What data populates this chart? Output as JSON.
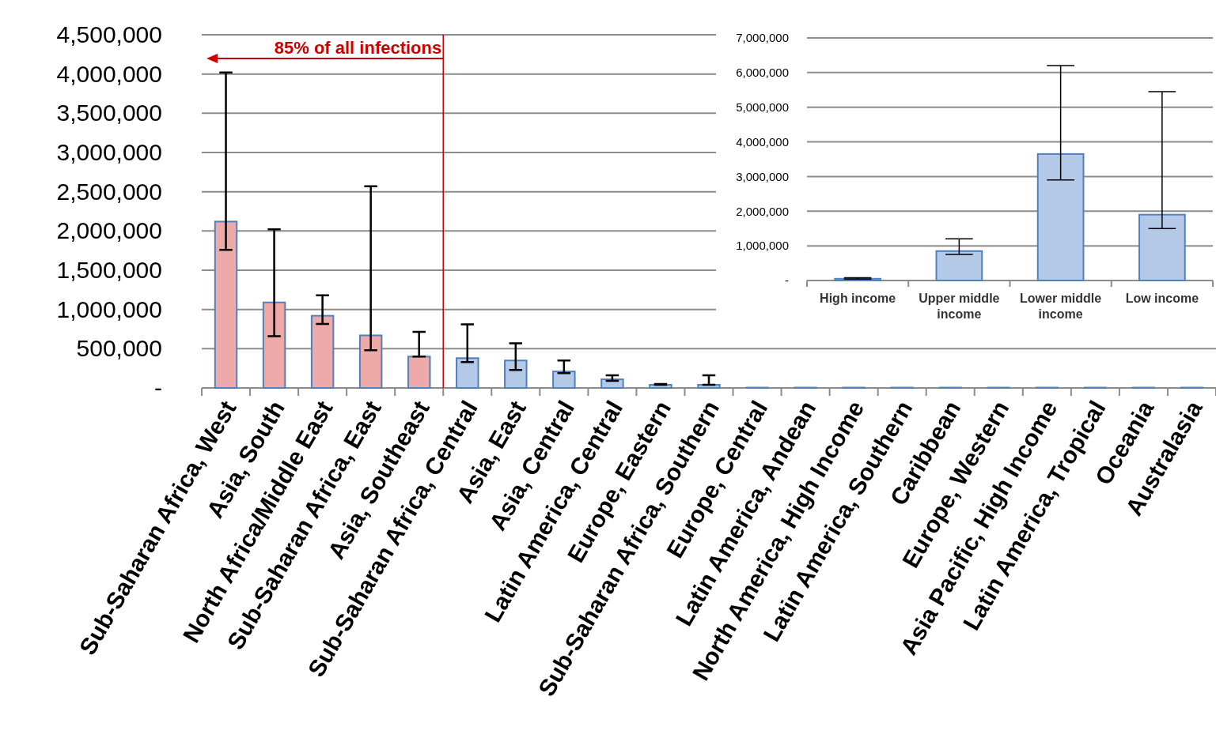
{
  "chart_data": [
    {
      "type": "bar",
      "categories": [
        "Sub-Saharan Africa, West",
        "Asia, South",
        "North Africa/Middle East",
        "Sub-Saharan Africa, East",
        "Asia, Southeast",
        "Sub-Saharan Africa, Central",
        "Asia, East",
        "Asia, Central",
        "Latin America, Central",
        "Europe, Eastern",
        "Sub-Saharan Africa, Southern",
        "Europe, Central",
        "Latin America, Andean",
        "North America, High Income",
        "Latin America, Southern",
        "Caribbean",
        "Europe, Western",
        "Asia Pacific, High Income",
        "Latin America, Tropical",
        "Oceania",
        "Australasia"
      ],
      "values": [
        2120000,
        1090000,
        920000,
        670000,
        400000,
        380000,
        350000,
        210000,
        110000,
        40000,
        40000,
        5000,
        5000,
        5000,
        5000,
        5000,
        5000,
        5000,
        5000,
        5000,
        5000
      ],
      "errors": [
        [
          1760000,
          4020000
        ],
        [
          660000,
          2020000
        ],
        [
          815000,
          1180000
        ],
        [
          480000,
          2570000
        ],
        [
          400000,
          715000
        ],
        [
          330000,
          810000
        ],
        [
          230000,
          570000
        ],
        [
          190000,
          350000
        ],
        [
          90000,
          160000
        ],
        [
          40000,
          50000
        ],
        [
          40000,
          160000
        ],
        null,
        null,
        null,
        null,
        null,
        null,
        null,
        null,
        null,
        null
      ],
      "colors": [
        "#eea9a9",
        "#eea9a9",
        "#eea9a9",
        "#eea9a9",
        "#eea9a9",
        "#b4c9e8",
        "#b4c9e8",
        "#b4c9e8",
        "#b4c9e8",
        "#b4c9e8",
        "#b4c9e8",
        "#b4c9e8",
        "#b4c9e8",
        "#b4c9e8",
        "#b4c9e8",
        "#b4c9e8",
        "#b4c9e8",
        "#b4c9e8",
        "#b4c9e8",
        "#b4c9e8",
        "#b4c9e8"
      ],
      "ylim": [
        0,
        4500000
      ],
      "yticks": [
        {
          "value": 0,
          "label": "-"
        },
        {
          "value": 500000,
          "label": "500,000"
        },
        {
          "value": 1000000,
          "label": "1,000,000"
        },
        {
          "value": 1500000,
          "label": "1,500,000"
        },
        {
          "value": 2000000,
          "label": "2,000,000"
        },
        {
          "value": 2500000,
          "label": "2,500,000"
        },
        {
          "value": 3000000,
          "label": "3,000,000"
        },
        {
          "value": 3500000,
          "label": "3,500,000"
        },
        {
          "value": 4000000,
          "label": "4,000,000"
        },
        {
          "value": 4500000,
          "label": "4,500,000"
        }
      ],
      "grid": "y",
      "ref_lines": [
        {
          "axis": "x",
          "value": "Asia, Southeast",
          "label": "85% of all infections",
          "color": "#cc0000"
        }
      ]
    },
    {
      "type": "bar",
      "categories": [
        "High income",
        "Upper middle income",
        "Lower middle income",
        "Low income"
      ],
      "values": [
        50000,
        850000,
        3650000,
        1900000
      ],
      "errors": [
        [
          40000,
          80000
        ],
        [
          750000,
          1200000
        ],
        [
          2900000,
          6200000
        ],
        [
          1500000,
          5450000
        ]
      ],
      "colors": [
        "#b4c9e8",
        "#b4c9e8",
        "#b4c9e8",
        "#b4c9e8"
      ],
      "ylim": [
        0,
        7000000
      ],
      "yticks": [
        {
          "value": 0,
          "label": "-"
        },
        {
          "value": 1000000,
          "label": "1,000,000"
        },
        {
          "value": 2000000,
          "label": "2,000,000"
        },
        {
          "value": 3000000,
          "label": "3,000,000"
        },
        {
          "value": 4000000,
          "label": "4,000,000"
        },
        {
          "value": 5000000,
          "label": "5,000,000"
        },
        {
          "value": 6000000,
          "label": "6,000,000"
        },
        {
          "value": 7000000,
          "label": "7,000,000"
        }
      ],
      "grid": "y"
    }
  ]
}
